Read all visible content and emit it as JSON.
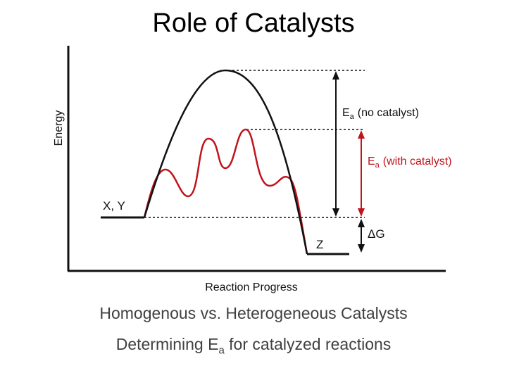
{
  "slide": {
    "title": "Role of Catalysts"
  },
  "diagram": {
    "y_axis_label": "Energy",
    "x_axis_label": "Reaction Progress",
    "reactants_label": "X, Y",
    "product_label": "Z",
    "ea_no_catalyst": {
      "symbol": "E",
      "subscript": "a",
      "text": "(no catalyst)",
      "color": "#000000"
    },
    "ea_with_catalyst": {
      "symbol": "E",
      "subscript": "a",
      "text": "(with catalyst)",
      "color": "#c0141c"
    },
    "delta_g_label": "ΔG",
    "uncatalyzed_curve_color": "#000000",
    "catalyzed_curve_color": "#c0141c"
  },
  "bullets": {
    "line1": "Homogenous vs. Heterogeneous Catalysts",
    "line2_prefix": "Determining E",
    "line2_subscript": "a",
    "line2_suffix": " for catalyzed reactions"
  }
}
